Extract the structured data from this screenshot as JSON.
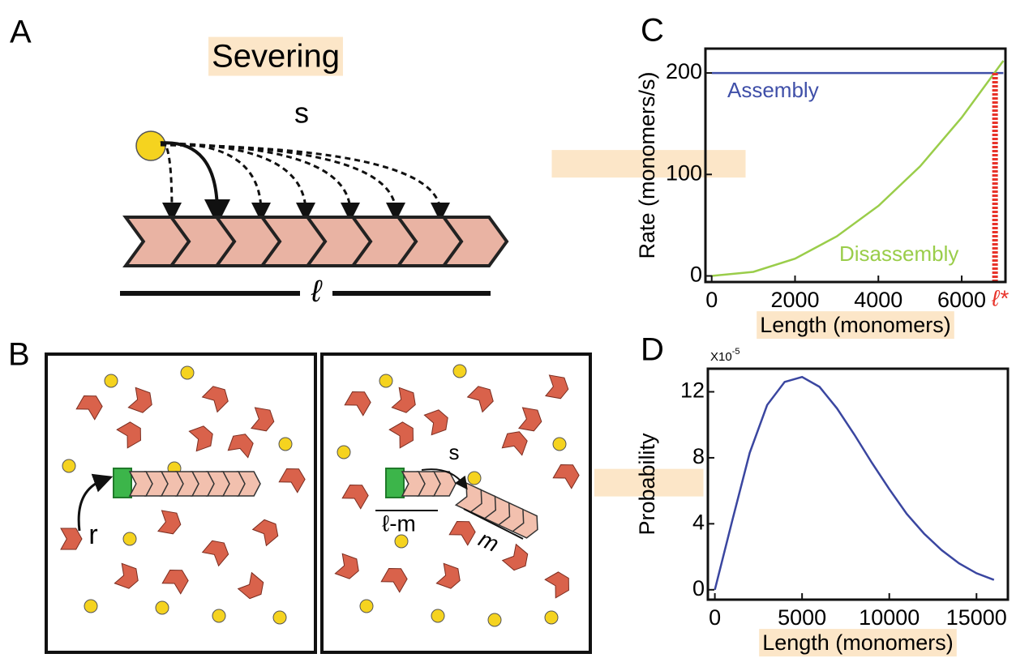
{
  "panels": {
    "a": {
      "label": "A",
      "title": "Severing",
      "rate": "s",
      "length": "ℓ"
    },
    "b": {
      "label": "B",
      "rate_growth": "r",
      "rate_severing": "s",
      "left_piece": "ℓ-m",
      "right_piece": "m"
    }
  },
  "chart_data": [
    {
      "type": "line",
      "panel_label": "C",
      "x_label": "Length (monomers)",
      "y_label": "Rate (monomers/s)",
      "x": [
        0,
        1000,
        2000,
        3000,
        4000,
        5000,
        6000,
        7000
      ],
      "series": [
        {
          "name": "Assembly",
          "color": "#3f4fa8",
          "values": [
            200,
            200,
            200,
            200,
            200,
            200,
            200,
            200
          ]
        },
        {
          "name": "Disassembly",
          "color": "#9acd4a",
          "values": [
            0,
            4,
            17,
            39,
            69,
            108,
            156,
            212
          ]
        }
      ],
      "annotations": [
        {
          "x": 6800,
          "text": "ℓ*",
          "color": "#e8332a"
        }
      ],
      "xlim": [
        -150,
        7050
      ],
      "ylim": [
        -6,
        224
      ],
      "xticks": [
        0,
        2000,
        4000,
        6000
      ],
      "yticks": [
        0,
        100,
        200
      ]
    },
    {
      "type": "line",
      "panel_label": "D",
      "x_label": "Length (monomers)",
      "y_label": "Probability",
      "y_scale_base": "X10",
      "y_scale_exponent": "-5",
      "x": [
        0,
        1000,
        2000,
        3000,
        4000,
        5000,
        6000,
        7000,
        8000,
        9000,
        10000,
        11000,
        12000,
        13000,
        14000,
        15000,
        16000
      ],
      "series": [
        {
          "name": "Probability",
          "color": "#3a46a0",
          "values": [
            0,
            4.2,
            8.3,
            11.2,
            12.6,
            12.9,
            12.3,
            11.0,
            9.4,
            7.7,
            6.1,
            4.6,
            3.4,
            2.4,
            1.6,
            1.0,
            0.6
          ]
        }
      ],
      "xlim": [
        -400,
        16800
      ],
      "ylim": [
        -0.6,
        13.4
      ],
      "xticks": [
        0,
        5000,
        10000,
        15000
      ],
      "yticks": [
        0,
        4,
        8,
        12
      ]
    }
  ]
}
